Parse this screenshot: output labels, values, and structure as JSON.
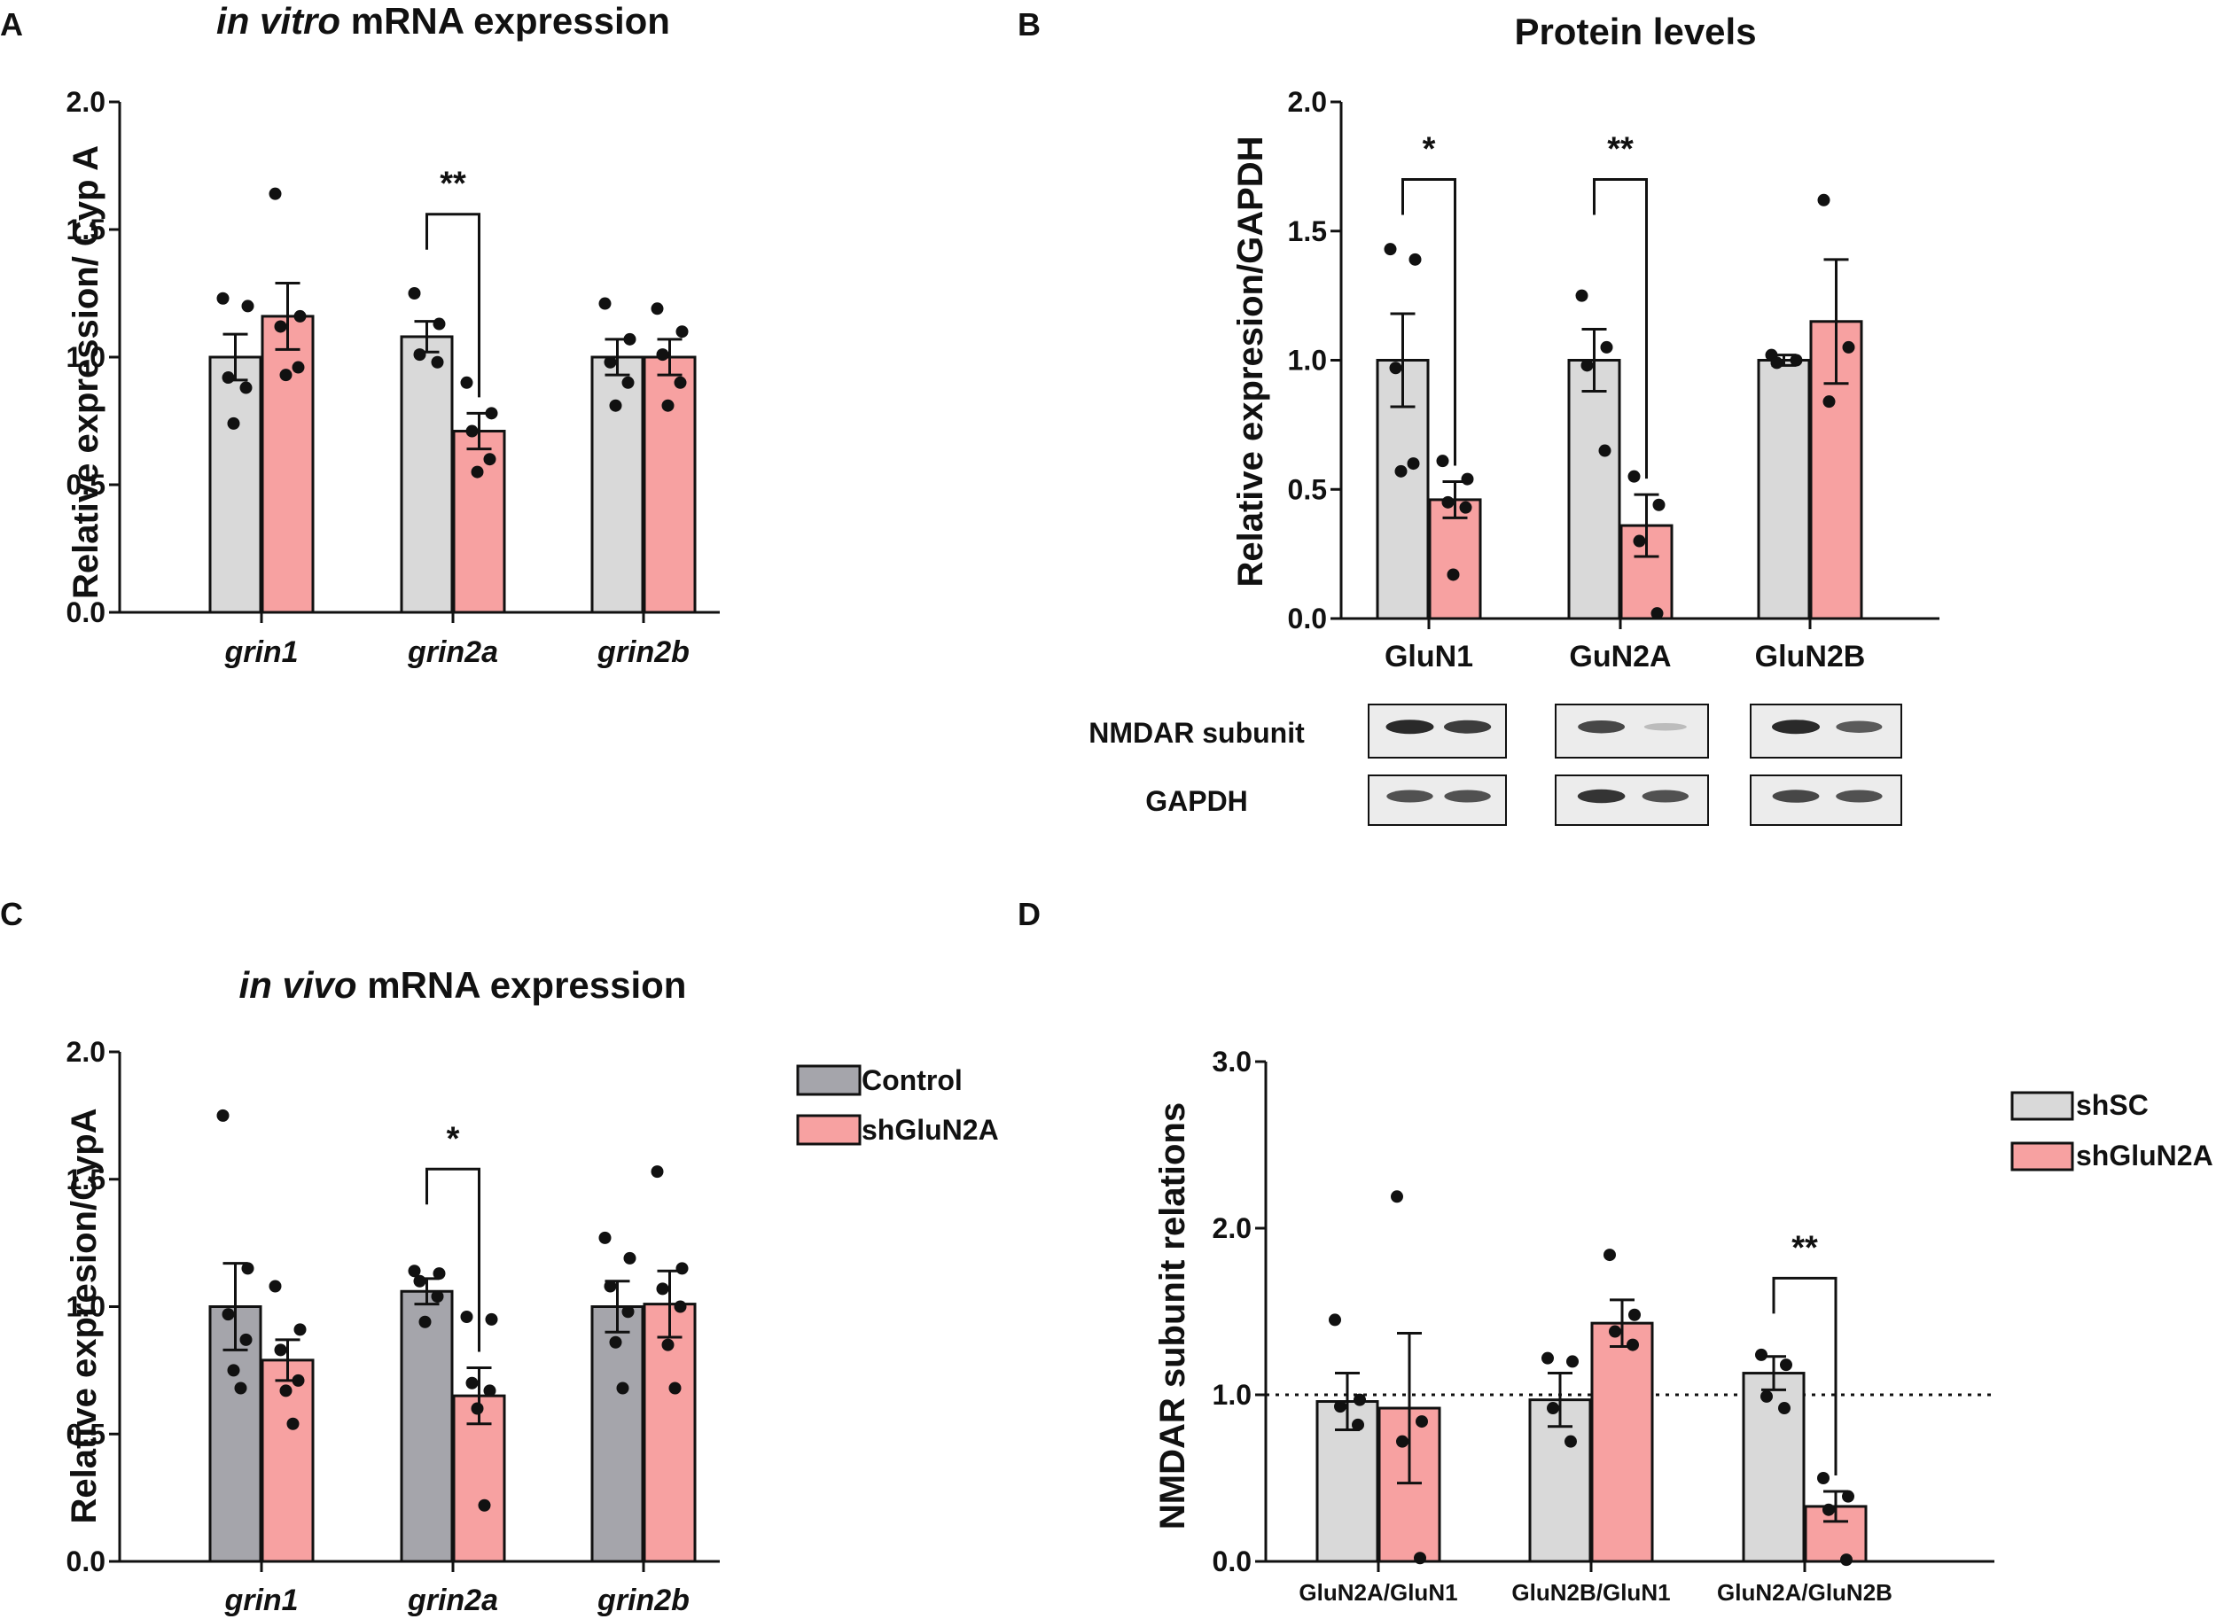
{
  "colors": {
    "light_gray": "#d9d9d9",
    "dark_gray": "#a5a5ab",
    "pink": "#f7a1a1",
    "axis": "#111111",
    "blot_bg": "#ececec",
    "band": "#2a2a2a"
  },
  "chart_data": [
    {
      "id": "A",
      "panel": "A",
      "type": "bar",
      "title": {
        "italic": "in vitro",
        "rest": " mRNA expression"
      },
      "ylabel": "Relative expression/ Cyp A",
      "xlabel": "",
      "ylim": [
        0,
        2.0
      ],
      "ticks": [
        0.0,
        0.5,
        1.0,
        1.5,
        2.0
      ],
      "tick_labels": [
        "0.0",
        "0.5",
        "1.0",
        "1.5",
        "2.0"
      ],
      "categories": [
        "grin1",
        "grin2a",
        "grin2b"
      ],
      "category_italic": true,
      "series": [
        {
          "name": "Control",
          "color": "#d9d9d9",
          "values": [
            1.0,
            1.08,
            1.0
          ],
          "errors": [
            0.09,
            0.06,
            0.07
          ],
          "points": [
            [
              1.23,
              1.2,
              0.92,
              0.88,
              0.74
            ],
            [
              1.25,
              1.13,
              1.01,
              0.98
            ],
            [
              1.21,
              1.07,
              0.98,
              0.9,
              0.81
            ]
          ]
        },
        {
          "name": "shGluN2A",
          "color": "#f7a1a1",
          "values": [
            1.16,
            0.71,
            1.0
          ],
          "errors": [
            0.13,
            0.07,
            0.07
          ],
          "points": [
            [
              1.64,
              1.16,
              1.12,
              0.96,
              0.93
            ],
            [
              0.9,
              0.78,
              0.71,
              0.6,
              0.55
            ],
            [
              1.19,
              1.1,
              1.01,
              0.9,
              0.81
            ]
          ]
        }
      ],
      "significance": [
        {
          "category": 1,
          "label": "**",
          "y": 1.56
        }
      ],
      "legend": null
    },
    {
      "id": "B",
      "panel": "B",
      "type": "bar",
      "title": {
        "italic": "",
        "rest": "Protein levels"
      },
      "ylabel": "Relative expresion/GAPDH",
      "xlabel": "",
      "ylim": [
        0,
        2.0
      ],
      "ticks": [
        0.0,
        0.5,
        1.0,
        1.5,
        2.0
      ],
      "tick_labels": [
        "0.0",
        "0.5",
        "1.0",
        "1.5",
        "2.0"
      ],
      "categories": [
        "GluN1",
        "GuN2A",
        "GluN2B"
      ],
      "category_italic": false,
      "series": [
        {
          "name": "shSC",
          "color": "#d9d9d9",
          "values": [
            1.0,
            1.0,
            1.0
          ],
          "errors": [
            0.18,
            0.12,
            0.02
          ],
          "points": [
            [
              1.43,
              1.39,
              0.97,
              0.6,
              0.57
            ],
            [
              1.25,
              1.05,
              0.98,
              0.65
            ],
            [
              1.02,
              1.0,
              0.99
            ]
          ]
        },
        {
          "name": "shGluN2A",
          "color": "#f7a1a1",
          "values": [
            0.46,
            0.36,
            1.15
          ],
          "errors": [
            0.07,
            0.12,
            0.24
          ],
          "points": [
            [
              0.61,
              0.54,
              0.45,
              0.43,
              0.17
            ],
            [
              0.55,
              0.44,
              0.3,
              0.02
            ],
            [
              1.62,
              1.05,
              0.84
            ]
          ]
        }
      ],
      "significance": [
        {
          "category": 0,
          "label": "*",
          "y": 1.7
        },
        {
          "category": 1,
          "label": "**",
          "y": 1.7
        }
      ],
      "legend": null
    },
    {
      "id": "C",
      "panel": "C",
      "type": "bar",
      "title": {
        "italic": "in vivo",
        "rest": " mRNA expression"
      },
      "ylabel": "Relative expresion/CypA",
      "xlabel": "",
      "ylim": [
        0,
        2.0
      ],
      "ticks": [
        0.0,
        0.5,
        1.0,
        1.5,
        2.0
      ],
      "tick_labels": [
        "0.0",
        "0.5",
        "1.0",
        "1.5",
        "2.0"
      ],
      "categories": [
        "grin1",
        "grin2a",
        "grin2b"
      ],
      "category_italic": true,
      "series": [
        {
          "name": "Control",
          "color": "#a5a5ab",
          "values": [
            1.0,
            1.06,
            1.0
          ],
          "errors": [
            0.17,
            0.05,
            0.1
          ],
          "points": [
            [
              1.75,
              1.15,
              0.97,
              0.87,
              0.75,
              0.68
            ],
            [
              1.14,
              1.13,
              1.1,
              1.04,
              0.94
            ],
            [
              1.27,
              1.19,
              1.08,
              0.98,
              0.86,
              0.68
            ]
          ]
        },
        {
          "name": "shGluN2A",
          "color": "#f7a1a1",
          "values": [
            0.79,
            0.65,
            1.01
          ],
          "errors": [
            0.08,
            0.11,
            0.13
          ],
          "points": [
            [
              1.08,
              0.91,
              0.83,
              0.71,
              0.67,
              0.54
            ],
            [
              0.96,
              0.95,
              0.7,
              0.67,
              0.6,
              0.22
            ],
            [
              1.53,
              1.15,
              1.07,
              1.0,
              0.85,
              0.68
            ]
          ]
        }
      ],
      "significance": [
        {
          "category": 1,
          "label": "*",
          "y": 1.54
        }
      ],
      "legend": {
        "items": [
          "Control",
          "shGluN2A"
        ],
        "colors": [
          "#a5a5ab",
          "#f7a1a1"
        ],
        "placement": "right"
      }
    },
    {
      "id": "D",
      "panel": "D",
      "type": "bar",
      "title": null,
      "ylabel": "NMDAR subunit relations",
      "xlabel": "",
      "ylim": [
        0,
        3.0
      ],
      "ticks": [
        0.0,
        1.0,
        2.0,
        3.0
      ],
      "tick_labels": [
        "0.0",
        "1.0",
        "2.0",
        "3.0"
      ],
      "categories": [
        "GluN2A/GluN1",
        "GluN2B/GluN1",
        "GluN2A/GluN2B"
      ],
      "category_italic": false,
      "reference_line": 1.0,
      "series": [
        {
          "name": "shSC",
          "color": "#d9d9d9",
          "values": [
            0.96,
            0.97,
            1.13
          ],
          "errors": [
            0.17,
            0.16,
            0.1
          ],
          "points": [
            [
              1.45,
              0.97,
              0.93,
              0.82
            ],
            [
              1.22,
              1.2,
              0.92,
              0.72
            ],
            [
              1.24,
              1.18,
              0.99,
              0.92
            ]
          ]
        },
        {
          "name": "shGluN2A",
          "color": "#f7a1a1",
          "values": [
            0.92,
            1.43,
            0.33
          ],
          "errors": [
            0.45,
            0.14,
            0.09
          ],
          "points": [
            [
              2.19,
              0.84,
              0.72,
              0.02
            ],
            [
              1.84,
              1.48,
              1.38,
              1.3
            ],
            [
              0.5,
              0.39,
              0.31,
              0.01
            ]
          ]
        }
      ],
      "significance": [
        {
          "category": 2,
          "label": "**",
          "y": 1.7
        }
      ],
      "legend": {
        "items": [
          "shSC",
          "shGluN2A"
        ],
        "colors": [
          "#d9d9d9",
          "#f7a1a1"
        ],
        "placement": "right"
      }
    }
  ],
  "blot": {
    "row_labels": [
      "NMDAR subunit",
      "GAPDH"
    ],
    "band_intensity": [
      [
        [
          1.0,
          0.9
        ],
        [
          0.85,
          0.25
        ],
        [
          1.0,
          0.75
        ]
      ],
      [
        [
          0.8,
          0.8
        ],
        [
          0.95,
          0.8
        ],
        [
          0.85,
          0.8
        ]
      ]
    ]
  }
}
